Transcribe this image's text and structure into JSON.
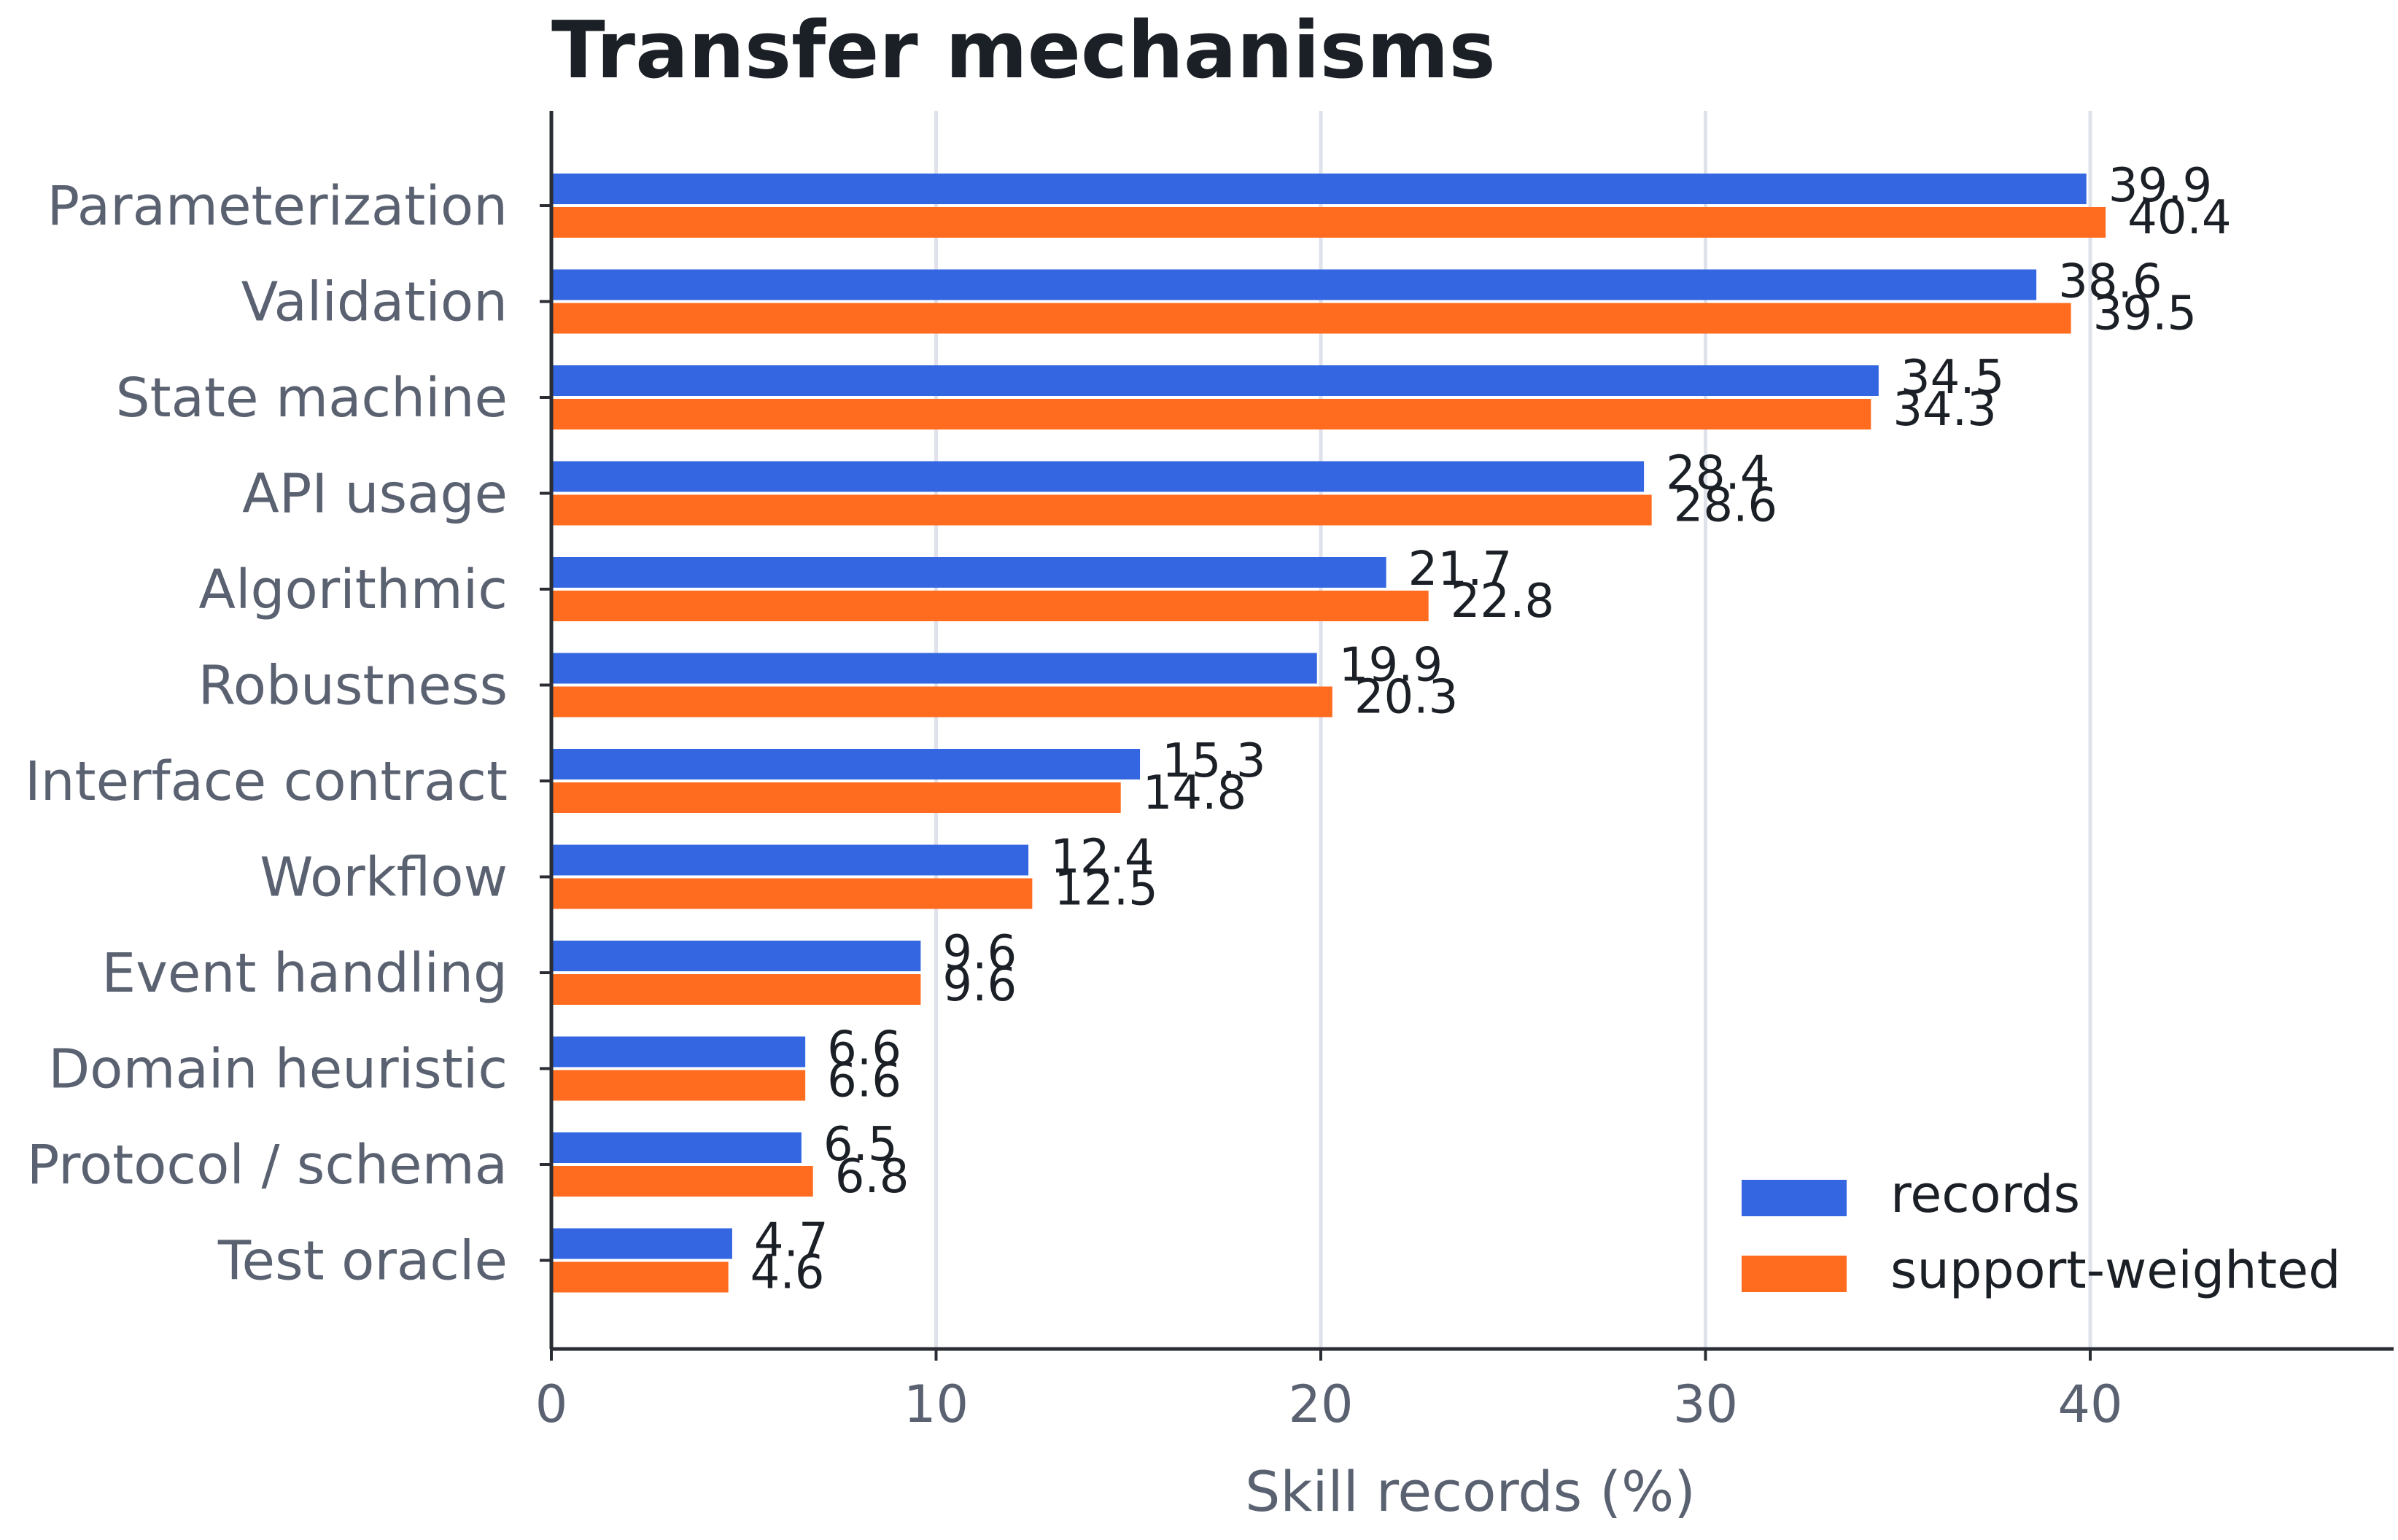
{
  "chart_data": {
    "type": "bar",
    "orientation": "horizontal",
    "title": "Transfer mechanisms",
    "xlabel": "Skill records (%)",
    "ylabel": "",
    "xlim": [
      0,
      47.8
    ],
    "xticks": [
      0,
      10,
      20,
      30,
      40
    ],
    "grid": "vertical",
    "legend_position": "bottom-right",
    "categories": [
      "Parameterization",
      "Validation",
      "State machine",
      "API usage",
      "Algorithmic",
      "Robustness",
      "Interface contract",
      "Workflow",
      "Event handling",
      "Domain heuristic",
      "Protocol / schema",
      "Test oracle"
    ],
    "series": [
      {
        "name": "records",
        "color": "#3366e0",
        "values": [
          39.9,
          38.6,
          34.5,
          28.4,
          21.7,
          19.9,
          15.3,
          12.4,
          9.6,
          6.6,
          6.5,
          4.7
        ]
      },
      {
        "name": "support-weighted",
        "color": "#ff6b1f",
        "values": [
          40.4,
          39.5,
          34.3,
          28.6,
          22.8,
          20.3,
          14.8,
          12.5,
          9.6,
          6.6,
          6.8,
          4.6
        ]
      }
    ]
  }
}
